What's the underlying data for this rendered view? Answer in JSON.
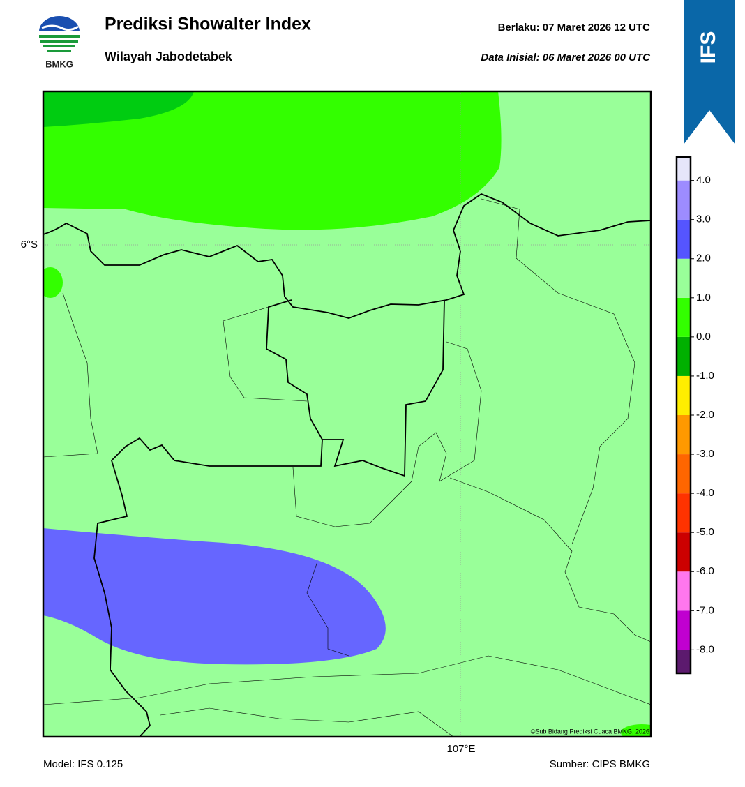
{
  "header": {
    "logo_text": "BMKG",
    "title": "Prediksi Showalter Index",
    "subtitle": "Wilayah Jabodetabek",
    "valid": "Berlaku:  07 Maret 2026 12 UTC",
    "init": "Data Inisial:  06 Maret 2026 00 UTC",
    "badge": "IFS"
  },
  "map": {
    "lat_label": "6°S",
    "lon_label": "107°E",
    "copyright": "©Sub Bidang Prediksi Cuaca BMKG, 2026"
  },
  "colorbar": {
    "lim": [
      -8.6,
      4.6
    ],
    "ticks": [
      {
        "value": -8,
        "label": "-8.0"
      },
      {
        "value": -7,
        "label": "-7.0"
      },
      {
        "value": -6,
        "label": "-6.0"
      },
      {
        "value": -5,
        "label": "-5.0"
      },
      {
        "value": -4,
        "label": "-4.0"
      },
      {
        "value": -3,
        "label": "-3.0"
      },
      {
        "value": -2,
        "label": "-2.0"
      },
      {
        "value": -1,
        "label": "-1.0"
      },
      {
        "value": 0,
        "label": "0.0"
      },
      {
        "value": 1,
        "label": "1.0"
      },
      {
        "value": 2,
        "label": "2.0"
      },
      {
        "value": 3,
        "label": "3.0"
      },
      {
        "value": 4,
        "label": "4.0"
      }
    ],
    "colors": [
      "#5c1a6e",
      "#c000d0",
      "#ff77ee",
      "#cc0000",
      "#ff3300",
      "#ff6600",
      "#ff9900",
      "#ffee00",
      "#00b000",
      "#33ff00",
      "#99ff99",
      "#5555ff",
      "#9d8cff",
      "#e6e6fa",
      "#ffffff"
    ]
  },
  "footer": {
    "model": "Model: IFS 0.125",
    "source": "Sumber: CIPS BMKG"
  }
}
